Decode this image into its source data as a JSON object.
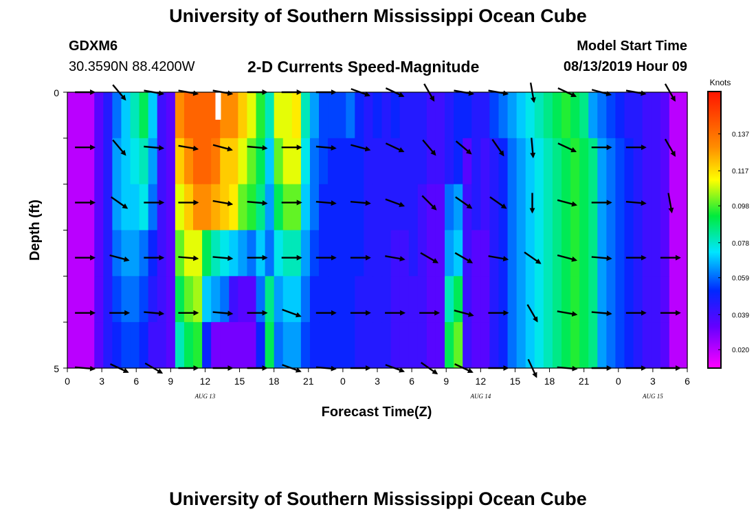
{
  "header": {
    "title": "University of Southern Mississippi Ocean Cube",
    "station": "GDXM6",
    "coords": "30.3590N 88.4200W",
    "subtitle": "2-D Currents Speed-Magnitude",
    "start_label": "Model Start Time",
    "start_value": "08/13/2019 Hour 09"
  },
  "footer": {
    "title": "University of Southern Mississippi Ocean Cube"
  },
  "chart_data": {
    "type": "heatmap",
    "title": "2-D Currents Speed-Magnitude",
    "xlabel": "Forecast Time(Z)",
    "ylabel": "Depth (ft)",
    "y_ticks": [
      "0",
      "5"
    ],
    "x_ticks": [
      "0",
      "3",
      "6",
      "9",
      "12",
      "15",
      "18",
      "21",
      "0",
      "3",
      "6",
      "9",
      "12",
      "15",
      "18",
      "21",
      "0",
      "3",
      "6"
    ],
    "date_labels": [
      {
        "text": "AUG 13",
        "hour": 12
      },
      {
        "text": "AUG 14",
        "hour": 36
      },
      {
        "text": "AUG 15",
        "hour": 51
      }
    ],
    "x_range_hours": [
      0,
      54
    ],
    "depth_range_ft": [
      0,
      5
    ],
    "colorbar": {
      "unit": "Knots",
      "range": [
        0.01,
        0.16
      ],
      "ticks": [
        "0.137",
        "0.117",
        "0.098",
        "0.078",
        "0.059",
        "0.039",
        "0.020"
      ],
      "tick_values": [
        0.137,
        0.117,
        0.098,
        0.078,
        0.059,
        0.039,
        0.02
      ]
    },
    "speed_layers_knots": [
      [
        0.02,
        0.02,
        0.02,
        0.035,
        0.045,
        0.06,
        0.07,
        0.08,
        0.09,
        0.07,
        0.04,
        0.035,
        0.13,
        0.14,
        0.14,
        0.14,
        0.14,
        0.13,
        0.13,
        0.12,
        0.11,
        0.095,
        0.08,
        0.11,
        0.11,
        0.115,
        0.08,
        0.065,
        0.055,
        0.055,
        0.055,
        0.06,
        0.05,
        0.045,
        0.05,
        0.045,
        0.05,
        0.045,
        0.045,
        0.045,
        0.04,
        0.04,
        0.045,
        0.05,
        0.05,
        0.045,
        0.045,
        0.055,
        0.06,
        0.065,
        0.07,
        0.075,
        0.08,
        0.085,
        0.09,
        0.095,
        0.09,
        0.085,
        0.065,
        0.06,
        0.055,
        0.05,
        0.045,
        0.045,
        0.04,
        0.04,
        0.035,
        0.02,
        0.02
      ],
      [
        0.02,
        0.02,
        0.02,
        0.035,
        0.045,
        0.065,
        0.07,
        0.075,
        0.08,
        0.065,
        0.04,
        0.035,
        0.12,
        0.13,
        0.14,
        0.14,
        0.135,
        0.12,
        0.12,
        0.11,
        0.1,
        0.09,
        0.07,
        0.1,
        0.11,
        0.11,
        0.075,
        0.06,
        0.055,
        0.05,
        0.05,
        0.05,
        0.05,
        0.045,
        0.045,
        0.045,
        0.045,
        0.045,
        0.045,
        0.045,
        0.04,
        0.04,
        0.045,
        0.05,
        0.035,
        0.045,
        0.04,
        0.045,
        0.05,
        0.06,
        0.065,
        0.07,
        0.075,
        0.08,
        0.085,
        0.09,
        0.095,
        0.09,
        0.085,
        0.065,
        0.06,
        0.055,
        0.05,
        0.045,
        0.04,
        0.04,
        0.035,
        0.02,
        0.02
      ],
      [
        0.02,
        0.02,
        0.02,
        0.035,
        0.045,
        0.065,
        0.07,
        0.07,
        0.075,
        0.06,
        0.04,
        0.035,
        0.11,
        0.12,
        0.13,
        0.13,
        0.125,
        0.12,
        0.115,
        0.1,
        0.095,
        0.085,
        0.065,
        0.09,
        0.1,
        0.1,
        0.07,
        0.06,
        0.05,
        0.05,
        0.05,
        0.05,
        0.05,
        0.045,
        0.045,
        0.045,
        0.045,
        0.045,
        0.045,
        0.04,
        0.035,
        0.035,
        0.06,
        0.065,
        0.04,
        0.045,
        0.04,
        0.045,
        0.05,
        0.06,
        0.065,
        0.07,
        0.075,
        0.08,
        0.085,
        0.09,
        0.095,
        0.09,
        0.085,
        0.065,
        0.06,
        0.055,
        0.05,
        0.045,
        0.04,
        0.04,
        0.035,
        0.02,
        0.02
      ],
      [
        0.02,
        0.02,
        0.02,
        0.035,
        0.045,
        0.06,
        0.065,
        0.065,
        0.06,
        0.05,
        0.04,
        0.035,
        0.1,
        0.11,
        0.11,
        0.09,
        0.08,
        0.075,
        0.07,
        0.065,
        0.06,
        0.07,
        0.06,
        0.075,
        0.08,
        0.08,
        0.065,
        0.055,
        0.05,
        0.05,
        0.05,
        0.05,
        0.05,
        0.045,
        0.045,
        0.045,
        0.04,
        0.04,
        0.045,
        0.04,
        0.035,
        0.035,
        0.065,
        0.07,
        0.04,
        0.035,
        0.035,
        0.045,
        0.05,
        0.06,
        0.065,
        0.07,
        0.075,
        0.08,
        0.085,
        0.09,
        0.095,
        0.09,
        0.085,
        0.065,
        0.06,
        0.055,
        0.05,
        0.045,
        0.04,
        0.04,
        0.035,
        0.02,
        0.02
      ],
      [
        0.02,
        0.02,
        0.02,
        0.035,
        0.045,
        0.055,
        0.06,
        0.06,
        0.055,
        0.045,
        0.04,
        0.035,
        0.09,
        0.1,
        0.105,
        0.07,
        0.065,
        0.06,
        0.04,
        0.035,
        0.035,
        0.06,
        0.085,
        0.065,
        0.07,
        0.07,
        0.06,
        0.05,
        0.05,
        0.05,
        0.05,
        0.05,
        0.045,
        0.045,
        0.045,
        0.045,
        0.04,
        0.04,
        0.04,
        0.04,
        0.035,
        0.035,
        0.08,
        0.09,
        0.04,
        0.035,
        0.035,
        0.045,
        0.05,
        0.06,
        0.065,
        0.07,
        0.075,
        0.08,
        0.085,
        0.09,
        0.095,
        0.09,
        0.085,
        0.065,
        0.06,
        0.055,
        0.05,
        0.045,
        0.04,
        0.04,
        0.035,
        0.02,
        0.02
      ],
      [
        0.02,
        0.02,
        0.02,
        0.035,
        0.045,
        0.05,
        0.055,
        0.055,
        0.05,
        0.04,
        0.04,
        0.035,
        0.08,
        0.09,
        0.095,
        0.05,
        0.03,
        0.03,
        0.03,
        0.03,
        0.03,
        0.05,
        0.09,
        0.06,
        0.065,
        0.065,
        0.055,
        0.05,
        0.05,
        0.05,
        0.05,
        0.05,
        0.045,
        0.045,
        0.045,
        0.045,
        0.04,
        0.04,
        0.04,
        0.04,
        0.035,
        0.035,
        0.09,
        0.1,
        0.04,
        0.035,
        0.035,
        0.045,
        0.05,
        0.06,
        0.065,
        0.07,
        0.075,
        0.08,
        0.085,
        0.09,
        0.095,
        0.09,
        0.085,
        0.065,
        0.06,
        0.055,
        0.05,
        0.045,
        0.04,
        0.04,
        0.035,
        0.02,
        0.02
      ]
    ],
    "vector_times_hours": [
      1.5,
      4.5,
      7.5,
      10.5,
      13.5,
      16.5,
      19.5,
      22.5,
      25.5,
      28.5,
      31.5,
      34.5,
      37.5,
      40.5,
      43.5,
      46.5,
      49.5,
      52.5
    ],
    "vector_depths_ft": [
      0,
      1,
      2,
      3,
      4,
      5
    ],
    "vector_directions_deg": [
      [
        0,
        50,
        10,
        10,
        10,
        0,
        0,
        0,
        20,
        25,
        60,
        10,
        10,
        80,
        25,
        15,
        10,
        60
      ],
      [
        0,
        50,
        5,
        10,
        15,
        5,
        0,
        5,
        15,
        25,
        50,
        40,
        55,
        85,
        25,
        0,
        0,
        60
      ],
      [
        0,
        35,
        0,
        0,
        10,
        5,
        0,
        5,
        5,
        20,
        45,
        35,
        35,
        90,
        15,
        0,
        5,
        80
      ],
      [
        0,
        15,
        0,
        5,
        5,
        0,
        0,
        0,
        0,
        10,
        30,
        30,
        10,
        35,
        15,
        5,
        0,
        0
      ],
      [
        0,
        0,
        5,
        0,
        5,
        0,
        20,
        0,
        0,
        0,
        0,
        15,
        0,
        60,
        10,
        5,
        0,
        0
      ],
      [
        5,
        25,
        30,
        0,
        0,
        0,
        20,
        5,
        0,
        20,
        35,
        25,
        0,
        65,
        5,
        0,
        0,
        0
      ]
    ]
  }
}
